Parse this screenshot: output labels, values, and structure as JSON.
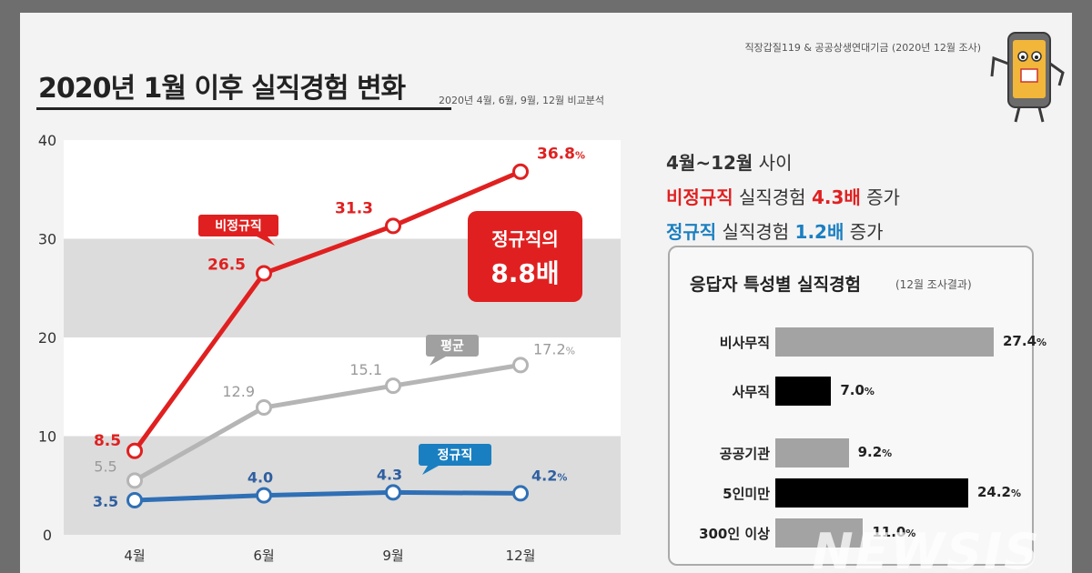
{
  "header": {
    "title": "2020년 1월 이후 실직경험 변화",
    "subtitle": "2020년 4월, 6월, 9월, 12월 비교분석",
    "source": "직장갑질119 & 공공상생연대기금 (2020년 12월 조사)"
  },
  "chart_data": [
    {
      "type": "line",
      "x": [
        "4월",
        "6월",
        "9월",
        "12월"
      ],
      "ylim": [
        0,
        40
      ],
      "yticks": [
        0,
        10,
        20,
        30,
        40
      ],
      "series": [
        {
          "name": "비정규직",
          "values": [
            8.5,
            26.5,
            31.3,
            36.8
          ],
          "labels": [
            "8.5",
            "26.5",
            "31.3",
            "36.8%"
          ],
          "color": "#e02020"
        },
        {
          "name": "평균",
          "values": [
            5.5,
            12.9,
            15.1,
            17.2
          ],
          "labels": [
            "5.5",
            "12.9",
            "15.1",
            "17.2%"
          ],
          "color": "#b5b5b5"
        },
        {
          "name": "정규직",
          "values": [
            3.5,
            4.0,
            4.3,
            4.2
          ],
          "labels": [
            "3.5",
            "4.0",
            "4.3",
            "4.2%"
          ],
          "color": "#2f6fb5"
        }
      ],
      "callout": {
        "line1": "정규직의",
        "line2": "8.8배"
      }
    },
    {
      "type": "bar",
      "orientation": "horizontal",
      "title": "응답자 특성별 실직경험",
      "note": "(12월 조사결과)",
      "categories": [
        "비사무직",
        "사무직",
        "공공기관",
        "5인미만",
        "300인 이상"
      ],
      "values": [
        27.4,
        7.0,
        9.2,
        24.2,
        11.0
      ],
      "labels": [
        "27.4%",
        "7.0%",
        "9.2%",
        "24.2%",
        "11.0%"
      ],
      "colors": [
        "#a3a3a3",
        "#000000",
        "#a3a3a3",
        "#000000",
        "#a3a3a3"
      ]
    }
  ],
  "summary": {
    "line1_strong": "4월~12월",
    "line1_rest": " 사이",
    "line2_strong": "비정규직",
    "line2_mid": " 실직경험 ",
    "line2_value": "4.3배",
    "line2_end": " 증가",
    "line3_strong": "정규직",
    "line3_mid": " 실직경험 ",
    "line3_value": "1.2배",
    "line3_end": " 증가"
  },
  "watermark": "NEWSIS",
  "colors": {
    "red": "#e02020",
    "blue": "#1a7fc1",
    "gray": "#b5b5b5",
    "band": "#dcdcdc"
  }
}
